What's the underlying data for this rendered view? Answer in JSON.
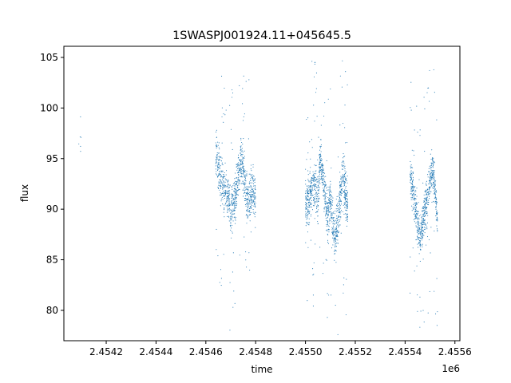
{
  "chart_data": {
    "type": "scatter",
    "title": "1SWASPJ001924.11+045645.5",
    "xlabel": "time",
    "ylabel": "flux",
    "x_offset_label": "1e6",
    "x_scale": 1000000,
    "xlim": [
      2.45403,
      2.45562
    ],
    "ylim": [
      77.0,
      106.1
    ],
    "x_ticks": [
      2.4542,
      2.4544,
      2.4546,
      2.4548,
      2.455,
      2.4552,
      2.4554,
      2.4556
    ],
    "x_tick_labels": [
      "2.4542",
      "2.4544",
      "2.4546",
      "2.4548",
      "2.4550",
      "2.4552",
      "2.4554",
      "2.4556"
    ],
    "y_ticks": [
      80,
      85,
      90,
      95,
      100,
      105
    ],
    "y_tick_labels": [
      "80",
      "85",
      "90",
      "95",
      "100",
      "105"
    ],
    "grid": false,
    "marker_color": "#1f77b4",
    "series": [
      {
        "segments": [
          {
            "x_range": [
              2.45409,
              2.4541
            ],
            "points": 6,
            "base": [
              [
                2.45409,
                96.0
              ]
            ],
            "noise": 2.5,
            "outlier_spread": 0
          },
          {
            "x_range": [
              2.45464,
              2.4548
            ],
            "points": 900,
            "base": [
              [
                2.45464,
                96.0
              ],
              [
                2.45465,
                94.5
              ],
              [
                2.45467,
                92.0
              ],
              [
                2.45469,
                91.0
              ],
              [
                2.4547,
                89.5
              ],
              [
                2.45472,
                91.5
              ],
              [
                2.45473,
                93.0
              ],
              [
                2.45474,
                95.0
              ],
              [
                2.45475,
                94.0
              ],
              [
                2.45476,
                92.0
              ],
              [
                2.45477,
                90.5
              ],
              [
                2.45478,
                91.5
              ],
              [
                2.45479,
                92.0
              ],
              [
                2.4548,
                90.5
              ]
            ],
            "noise": 1.6,
            "outlier_spread": 12
          },
          {
            "x_range": [
              2.455,
              2.45517
            ],
            "points": 1100,
            "base": [
              [
                2.455,
                90.5
              ],
              [
                2.45502,
                91.5
              ],
              [
                2.45504,
                92.5
              ],
              [
                2.45505,
                90.0
              ],
              [
                2.45506,
                95.5
              ],
              [
                2.45507,
                93.0
              ],
              [
                2.45508,
                91.0
              ],
              [
                2.45509,
                89.5
              ],
              [
                2.4551,
                91.0
              ],
              [
                2.45511,
                88.5
              ],
              [
                2.45512,
                87.0
              ],
              [
                2.45513,
                89.0
              ],
              [
                2.45514,
                91.0
              ],
              [
                2.45515,
                93.5
              ],
              [
                2.45516,
                92.0
              ],
              [
                2.45517,
                90.5
              ]
            ],
            "noise": 1.7,
            "outlier_spread": 13
          },
          {
            "x_range": [
              2.45542,
              2.45553
            ],
            "points": 700,
            "base": [
              [
                2.45542,
                93.5
              ],
              [
                2.45543,
                92.0
              ],
              [
                2.45544,
                90.5
              ],
              [
                2.45545,
                88.5
              ],
              [
                2.45546,
                87.0
              ],
              [
                2.45547,
                88.5
              ],
              [
                2.45548,
                90.0
              ],
              [
                2.45549,
                91.0
              ],
              [
                2.4555,
                93.0
              ],
              [
                2.45551,
                94.0
              ],
              [
                2.45552,
                92.0
              ],
              [
                2.45553,
                88.5
              ]
            ],
            "noise": 1.4,
            "outlier_spread": 12
          }
        ]
      }
    ]
  }
}
